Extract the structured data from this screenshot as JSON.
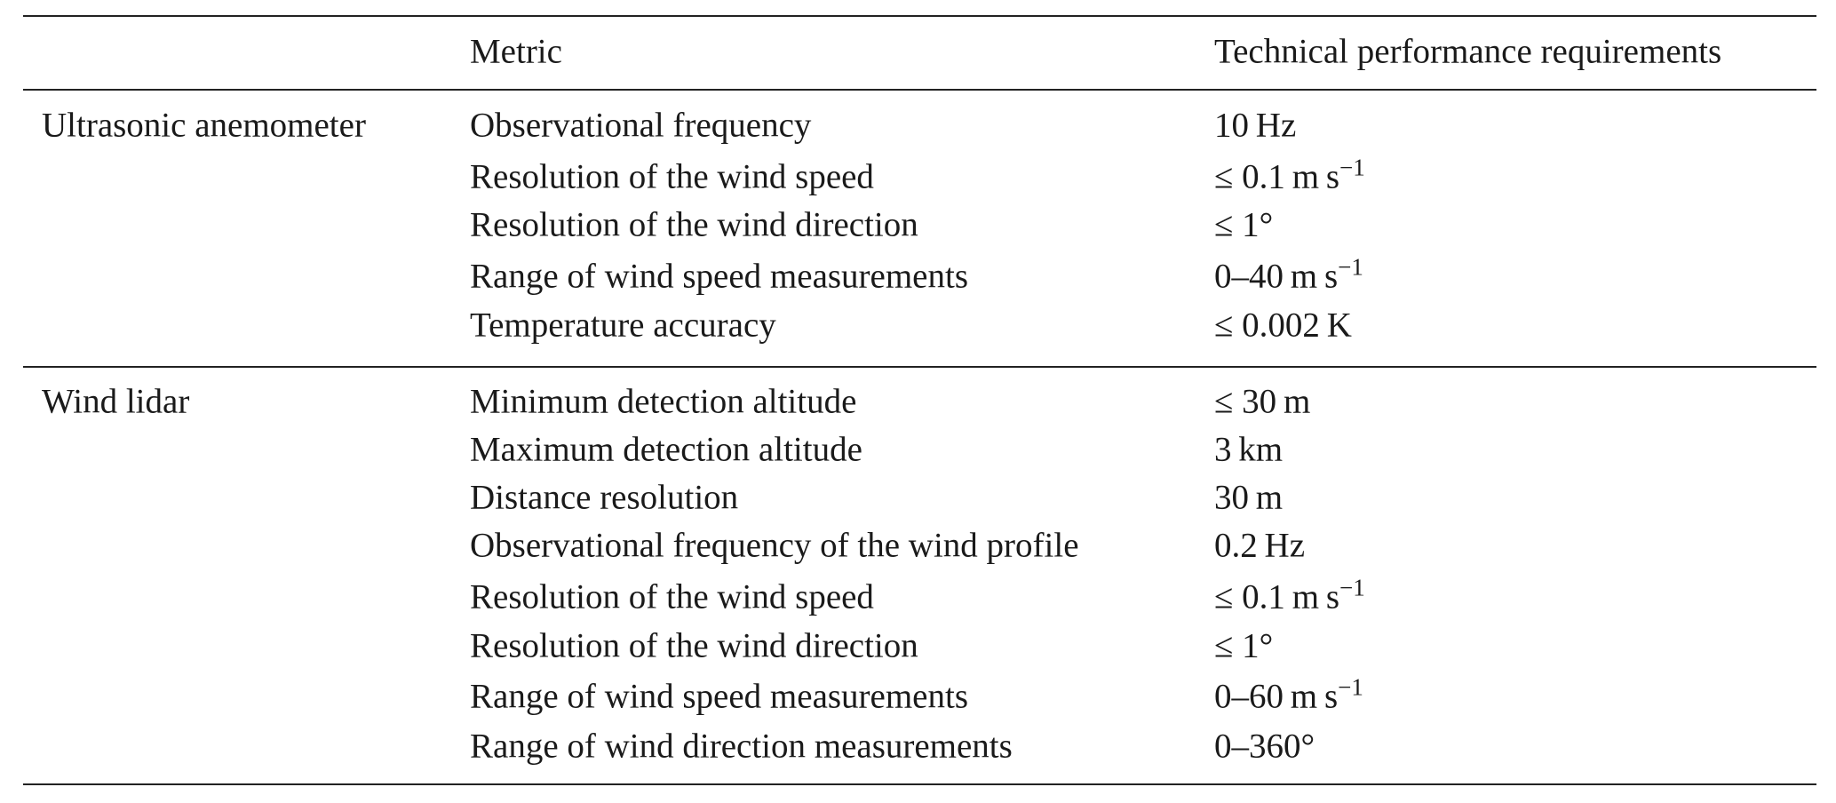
{
  "table": {
    "header": {
      "metric": "Metric",
      "requirement": "Technical performance requirements"
    },
    "groups": [
      {
        "instrument": "Ultrasonic anemometer",
        "rows": [
          {
            "metric": "Observational frequency",
            "requirement": "10 Hz"
          },
          {
            "metric": "Resolution of the wind speed",
            "requirement": {
              "text": "≤ 0.1 m s",
              "sup": "−1"
            }
          },
          {
            "metric": "Resolution of the wind direction",
            "requirement": "≤ 1°"
          },
          {
            "metric": "Range of wind speed measurements",
            "requirement": {
              "text": "0–40 m s",
              "sup": "−1"
            }
          },
          {
            "metric": "Temperature accuracy",
            "requirement": "≤ 0.002 K"
          }
        ]
      },
      {
        "instrument": "Wind lidar",
        "rows": [
          {
            "metric": "Minimum detection altitude",
            "requirement": "≤ 30 m"
          },
          {
            "metric": "Maximum detection altitude",
            "requirement": "3 km"
          },
          {
            "metric": "Distance resolution",
            "requirement": "30 m"
          },
          {
            "metric": "Observational frequency of the wind profile",
            "requirement": "0.2 Hz"
          },
          {
            "metric": "Resolution of the wind speed",
            "requirement": {
              "text": "≤ 0.1 m s",
              "sup": "−1"
            }
          },
          {
            "metric": "Resolution of the wind direction",
            "requirement": "≤ 1°"
          },
          {
            "metric": "Range of wind speed measurements",
            "requirement": {
              "text": "0–60 m s",
              "sup": "−1"
            }
          },
          {
            "metric": "Range of wind direction measurements",
            "requirement": "0–360°"
          }
        ]
      }
    ]
  }
}
